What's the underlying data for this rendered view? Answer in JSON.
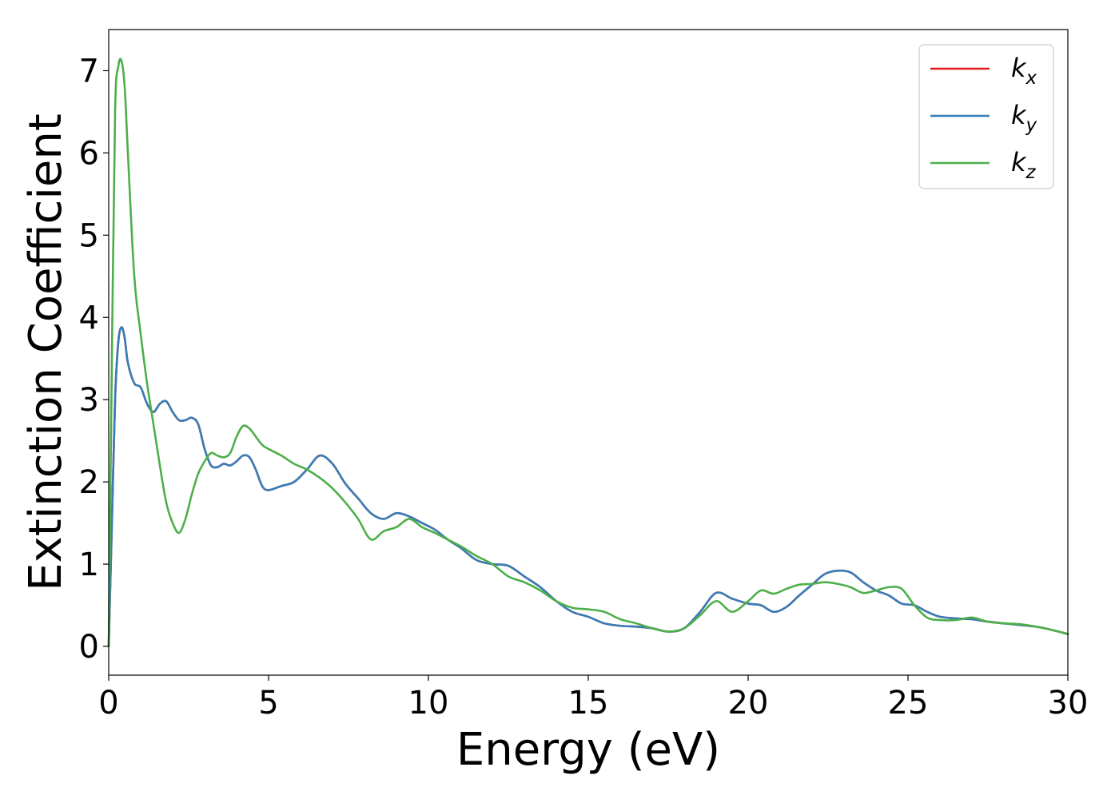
{
  "chart_data": {
    "type": "line",
    "title": "",
    "xlabel": "Energy (eV)",
    "ylabel": "Extinction Coefficient",
    "xlim": [
      0,
      30
    ],
    "ylim": [
      -0.35,
      7.5
    ],
    "xticks": [
      0,
      5,
      10,
      15,
      20,
      25,
      30
    ],
    "yticks": [
      0,
      1,
      2,
      3,
      4,
      5,
      6,
      7
    ],
    "grid": false,
    "legend_position": "top-right",
    "series": [
      {
        "name": "k",
        "subscript": "x",
        "color": "#e41a1c",
        "x": [
          0,
          0.1,
          0.2,
          0.3,
          0.4,
          0.5,
          0.6,
          0.8,
          1.0,
          1.2,
          1.4,
          1.6,
          1.8,
          2.0,
          2.2,
          2.4,
          2.6,
          2.8,
          3.0,
          3.2,
          3.4,
          3.6,
          3.8,
          4.0,
          4.2,
          4.4,
          4.6,
          4.8,
          5.0,
          5.4,
          5.8,
          6.2,
          6.6,
          7.0,
          7.4,
          7.8,
          8.2,
          8.6,
          9.0,
          9.4,
          9.8,
          10.2,
          10.6,
          11.0,
          11.5,
          12.0,
          12.5,
          13.0,
          13.5,
          14.0,
          14.5,
          15.0,
          15.5,
          16.0,
          16.5,
          17.0,
          17.5,
          18.0,
          18.5,
          19.0,
          19.5,
          20.0,
          20.4,
          20.8,
          21.2,
          21.6,
          22.0,
          22.4,
          22.8,
          23.2,
          23.6,
          24.0,
          24.4,
          24.8,
          25.2,
          25.6,
          26.0,
          26.5,
          27.0,
          27.5,
          28.0,
          28.5,
          29.0,
          29.5,
          30.0
        ],
        "y": [
          0.0,
          1.5,
          3.0,
          3.7,
          3.88,
          3.75,
          3.45,
          3.2,
          3.15,
          2.95,
          2.85,
          2.95,
          2.98,
          2.85,
          2.75,
          2.75,
          2.78,
          2.7,
          2.4,
          2.2,
          2.18,
          2.22,
          2.2,
          2.25,
          2.32,
          2.3,
          2.15,
          1.95,
          1.9,
          1.95,
          2.0,
          2.15,
          2.32,
          2.22,
          1.98,
          1.8,
          1.62,
          1.55,
          1.62,
          1.58,
          1.5,
          1.42,
          1.3,
          1.2,
          1.05,
          1.0,
          0.98,
          0.85,
          0.72,
          0.55,
          0.42,
          0.36,
          0.28,
          0.25,
          0.24,
          0.22,
          0.18,
          0.22,
          0.42,
          0.65,
          0.58,
          0.52,
          0.5,
          0.42,
          0.48,
          0.62,
          0.75,
          0.88,
          0.92,
          0.9,
          0.78,
          0.68,
          0.62,
          0.52,
          0.5,
          0.42,
          0.36,
          0.34,
          0.33,
          0.3,
          0.28,
          0.26,
          0.24,
          0.2,
          0.15
        ]
      },
      {
        "name": "k",
        "subscript": "y",
        "color": "#377eb8",
        "x": [
          0,
          0.1,
          0.2,
          0.3,
          0.4,
          0.5,
          0.6,
          0.8,
          1.0,
          1.2,
          1.4,
          1.6,
          1.8,
          2.0,
          2.2,
          2.4,
          2.6,
          2.8,
          3.0,
          3.2,
          3.4,
          3.6,
          3.8,
          4.0,
          4.2,
          4.4,
          4.6,
          4.8,
          5.0,
          5.4,
          5.8,
          6.2,
          6.6,
          7.0,
          7.4,
          7.8,
          8.2,
          8.6,
          9.0,
          9.4,
          9.8,
          10.2,
          10.6,
          11.0,
          11.5,
          12.0,
          12.5,
          13.0,
          13.5,
          14.0,
          14.5,
          15.0,
          15.5,
          16.0,
          16.5,
          17.0,
          17.5,
          18.0,
          18.5,
          19.0,
          19.5,
          20.0,
          20.4,
          20.8,
          21.2,
          21.6,
          22.0,
          22.4,
          22.8,
          23.2,
          23.6,
          24.0,
          24.4,
          24.8,
          25.2,
          25.6,
          26.0,
          26.5,
          27.0,
          27.5,
          28.0,
          28.5,
          29.0,
          29.5,
          30.0
        ],
        "y": [
          0.0,
          1.5,
          3.0,
          3.7,
          3.88,
          3.75,
          3.45,
          3.2,
          3.15,
          2.95,
          2.85,
          2.95,
          2.98,
          2.85,
          2.75,
          2.75,
          2.78,
          2.7,
          2.4,
          2.2,
          2.18,
          2.22,
          2.2,
          2.25,
          2.32,
          2.3,
          2.15,
          1.95,
          1.9,
          1.95,
          2.0,
          2.15,
          2.32,
          2.22,
          1.98,
          1.8,
          1.62,
          1.55,
          1.62,
          1.58,
          1.5,
          1.42,
          1.3,
          1.2,
          1.05,
          1.0,
          0.98,
          0.85,
          0.72,
          0.55,
          0.42,
          0.36,
          0.28,
          0.25,
          0.24,
          0.22,
          0.18,
          0.22,
          0.42,
          0.65,
          0.58,
          0.52,
          0.5,
          0.42,
          0.48,
          0.62,
          0.75,
          0.88,
          0.92,
          0.9,
          0.78,
          0.68,
          0.62,
          0.52,
          0.5,
          0.42,
          0.36,
          0.34,
          0.33,
          0.3,
          0.28,
          0.26,
          0.24,
          0.2,
          0.15
        ]
      },
      {
        "name": "k",
        "subscript": "z",
        "color": "#4daf4a",
        "x": [
          0,
          0.1,
          0.2,
          0.3,
          0.4,
          0.5,
          0.6,
          0.8,
          1.0,
          1.2,
          1.4,
          1.6,
          1.8,
          2.0,
          2.2,
          2.4,
          2.6,
          2.8,
          3.0,
          3.2,
          3.4,
          3.6,
          3.8,
          4.0,
          4.2,
          4.4,
          4.6,
          4.8,
          5.0,
          5.4,
          5.8,
          6.2,
          6.6,
          7.0,
          7.4,
          7.8,
          8.2,
          8.6,
          9.0,
          9.4,
          9.8,
          10.2,
          10.6,
          11.0,
          11.5,
          12.0,
          12.5,
          13.0,
          13.5,
          14.0,
          14.5,
          15.0,
          15.5,
          16.0,
          16.5,
          17.0,
          17.5,
          18.0,
          18.5,
          19.0,
          19.5,
          20.0,
          20.4,
          20.8,
          21.2,
          21.6,
          22.0,
          22.4,
          22.8,
          23.2,
          23.6,
          24.0,
          24.4,
          24.8,
          25.2,
          25.6,
          26.0,
          26.5,
          27.0,
          27.5,
          28.0,
          28.5,
          29.0,
          29.5,
          30.0
        ],
        "y": [
          0.0,
          3.5,
          6.5,
          7.05,
          7.12,
          6.8,
          6.0,
          4.5,
          3.8,
          3.2,
          2.7,
          2.2,
          1.75,
          1.5,
          1.38,
          1.55,
          1.85,
          2.1,
          2.25,
          2.35,
          2.32,
          2.3,
          2.35,
          2.55,
          2.68,
          2.65,
          2.55,
          2.45,
          2.4,
          2.32,
          2.22,
          2.15,
          2.05,
          1.92,
          1.75,
          1.55,
          1.3,
          1.4,
          1.45,
          1.55,
          1.45,
          1.38,
          1.3,
          1.22,
          1.1,
          1.0,
          0.85,
          0.78,
          0.68,
          0.55,
          0.47,
          0.45,
          0.42,
          0.33,
          0.28,
          0.22,
          0.18,
          0.22,
          0.38,
          0.55,
          0.42,
          0.55,
          0.68,
          0.64,
          0.7,
          0.75,
          0.76,
          0.78,
          0.76,
          0.72,
          0.65,
          0.68,
          0.72,
          0.7,
          0.5,
          0.35,
          0.32,
          0.32,
          0.35,
          0.3,
          0.28,
          0.27,
          0.24,
          0.2,
          0.15
        ]
      }
    ]
  }
}
